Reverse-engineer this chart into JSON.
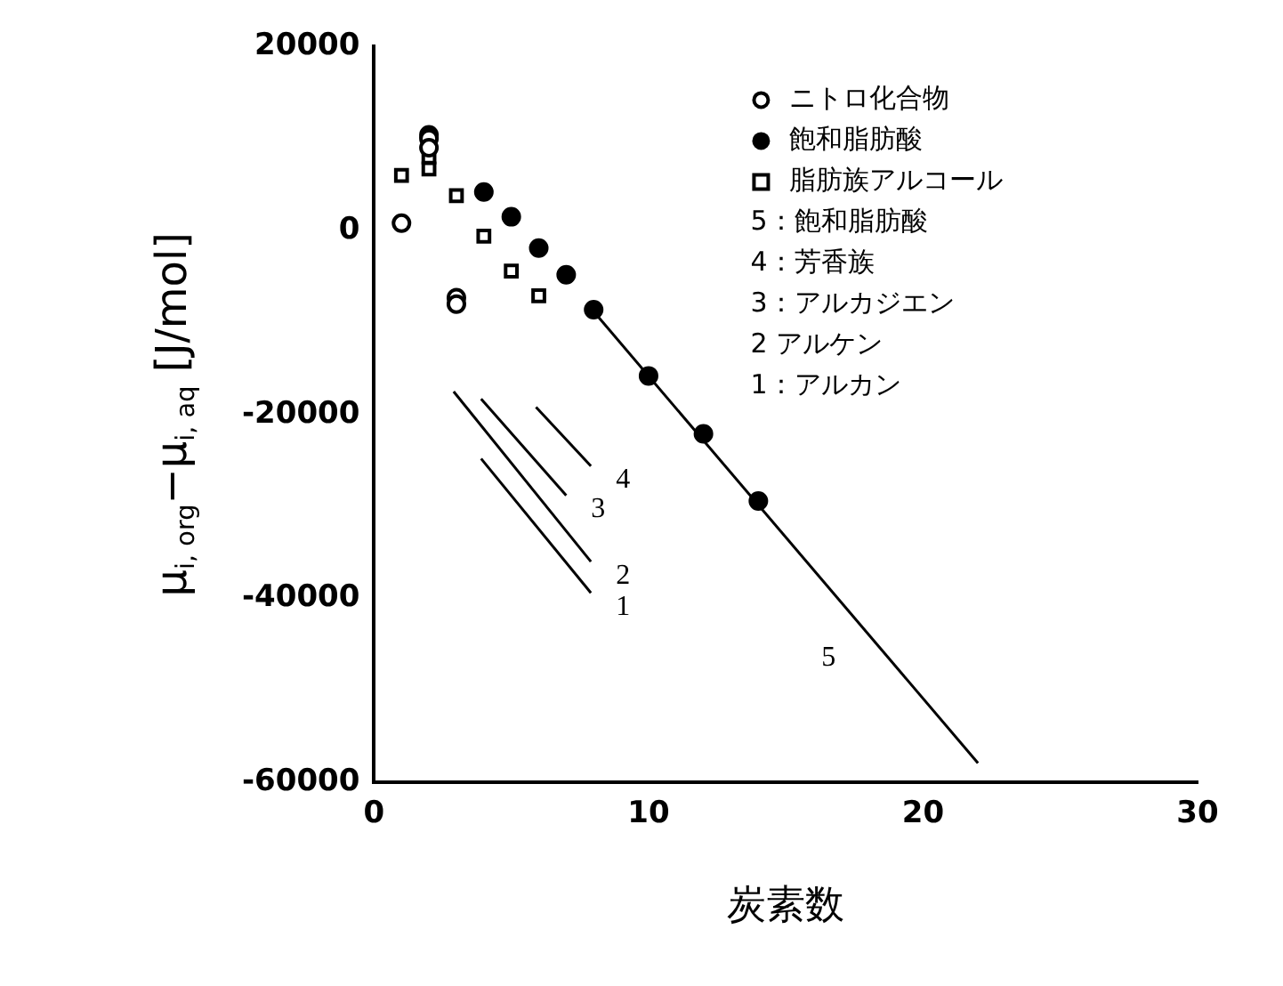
{
  "chart_data": {
    "type": "scatter",
    "xlabel": "炭素数",
    "ylabel": "μ$_{i, org}$−μ$_{i, aq}$ [J/mol]",
    "xlim": [
      0,
      30
    ],
    "xticks": [
      0,
      10,
      20,
      30
    ],
    "ylim": [
      -60000,
      20000
    ],
    "yticks": [
      -60000,
      -40000,
      -20000,
      0,
      20000
    ],
    "grid": false,
    "legend": "top right",
    "series": [
      {
        "name": "ニトロ化合物",
        "type": "scatter",
        "marker": "circle",
        "color": "#000000",
        "x": [
          1,
          2,
          2,
          3,
          3
        ],
        "values": [
          800,
          10000,
          9000,
          -7300,
          -8000
        ]
      },
      {
        "name": "飽和脂肪酸",
        "type": "scatter",
        "marker": "circle",
        "color": "#000000",
        "x": [
          2,
          4,
          5,
          6,
          7,
          8,
          10,
          12,
          14
        ],
        "values": [
          10400,
          4200,
          1500,
          -1900,
          -4800,
          -8600,
          -15800,
          -22100,
          -29400
        ]
      },
      {
        "name": "脂肪族アルコール",
        "type": "scatter",
        "marker": "square",
        "color": "#000000",
        "x": [
          1,
          2,
          2,
          3,
          4,
          5,
          6
        ],
        "values": [
          6000,
          8000,
          6700,
          3800,
          -600,
          -4400,
          -7100
        ]
      },
      {
        "name": "5",
        "type": "line",
        "marker": "none",
        "color": "#000000",
        "x": [
          8,
          22
        ],
        "values": [
          -8800,
          -57900
        ]
      },
      {
        "name": "4",
        "type": "line",
        "marker": "none",
        "color": "#000000",
        "x": [
          5.9,
          7.9
        ],
        "values": [
          -19200,
          -25600
        ]
      },
      {
        "name": "3",
        "type": "line",
        "marker": "none",
        "color": "#000000",
        "x": [
          3.9,
          7
        ],
        "values": [
          -18300,
          -28800
        ]
      },
      {
        "name": "2",
        "type": "line",
        "marker": "none",
        "color": "#000000",
        "x": [
          2.9,
          7.9
        ],
        "values": [
          -17500,
          -36000
        ]
      },
      {
        "name": "1",
        "type": "line",
        "marker": "none",
        "color": "#000000",
        "x": [
          3.9,
          7.9
        ],
        "values": [
          -24800,
          -39400
        ]
      }
    ],
    "annotations": [
      "5：飽和脂肪酸",
      "4：芳香族",
      "3：アルカジエン",
      "2 アルケン",
      "1：アルカン"
    ]
  }
}
